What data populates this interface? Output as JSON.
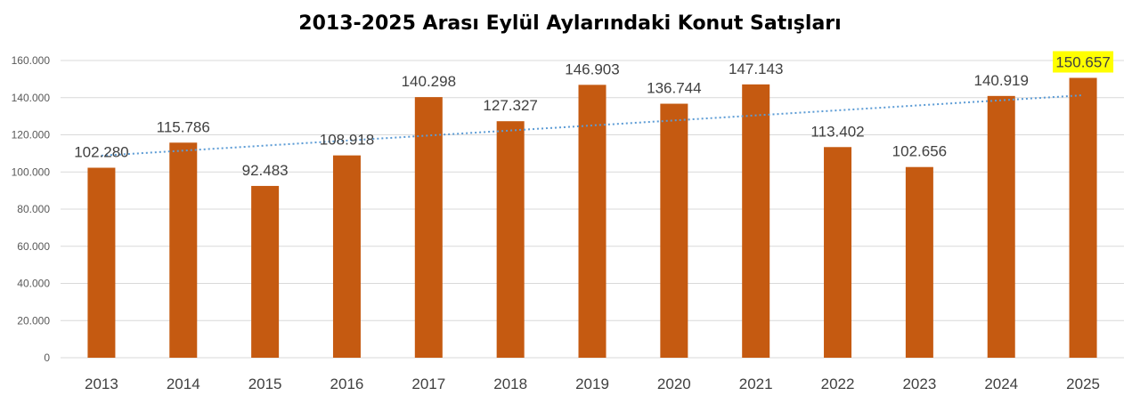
{
  "chart_data": {
    "type": "bar",
    "title": "2013-2025 Arası Eylül Aylarındaki Konut Satışları",
    "categories": [
      "2013",
      "2014",
      "2015",
      "2016",
      "2017",
      "2018",
      "2019",
      "2020",
      "2021",
      "2022",
      "2023",
      "2024",
      "2025"
    ],
    "values": [
      102280,
      115786,
      92483,
      108918,
      140298,
      127327,
      146903,
      136744,
      147143,
      113402,
      102656,
      140919,
      150657
    ],
    "data_labels": [
      "102.280",
      "115.786",
      "92.483",
      "108.918",
      "140.298",
      "127.327",
      "146.903",
      "136.744",
      "147.143",
      "113.402",
      "102.656",
      "140.919",
      "150.657"
    ],
    "ylim": [
      0,
      160000
    ],
    "yticks": [
      0,
      20000,
      40000,
      60000,
      80000,
      100000,
      120000,
      140000,
      160000
    ],
    "ytick_labels": [
      "0",
      "20.000",
      "40.000",
      "60.000",
      "80.000",
      "100.000",
      "120.000",
      "140.000",
      "160.000"
    ],
    "grid": true,
    "trendline": "linear dotted",
    "highlighted_label_index": 12,
    "colors": {
      "bar": "#C55A11",
      "trendline": "#5B9BD5",
      "grid": "#D9D9D9",
      "highlight": "#FFFF00"
    }
  }
}
